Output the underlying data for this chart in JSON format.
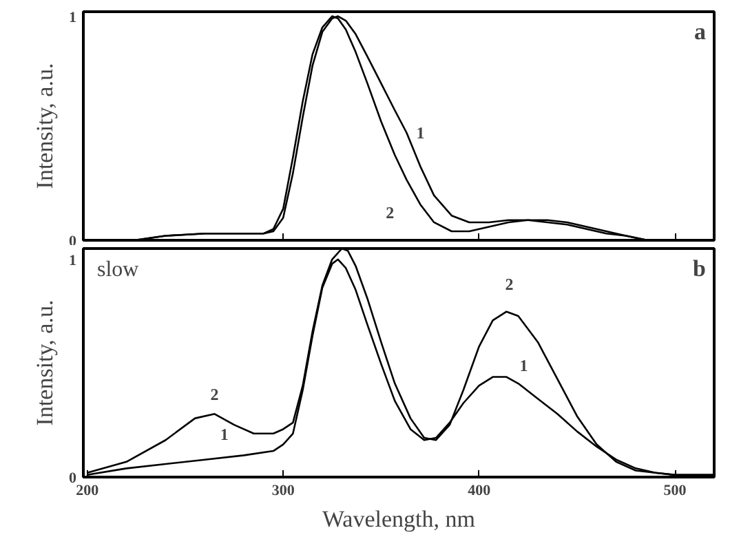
{
  "chart_data": [
    {
      "type": "line",
      "title": "a",
      "ylabel": "Intensity, a.u.",
      "xlim": [
        198,
        520
      ],
      "xticks": [
        {
          "value": 300,
          "label": null
        },
        {
          "value": 400,
          "label": null
        },
        {
          "value": 500,
          "label": null
        }
      ],
      "ylim": [
        0,
        1.02
      ],
      "yticks": [
        0,
        1
      ],
      "tick_labels": "y",
      "grid": false,
      "series": [
        {
          "color": "#000000",
          "x": [
            224,
            240,
            260,
            280,
            290,
            295,
            300,
            305,
            310,
            315,
            320,
            325,
            328,
            332,
            337,
            343,
            350,
            357,
            363,
            370,
            377,
            386,
            395,
            405,
            415,
            425,
            435,
            445,
            455,
            465,
            475,
            486
          ],
          "values": [
            0,
            0.02,
            0.03,
            0.03,
            0.03,
            0.04,
            0.1,
            0.3,
            0.55,
            0.78,
            0.93,
            0.99,
            1,
            0.98,
            0.92,
            0.82,
            0.7,
            0.58,
            0.48,
            0.33,
            0.2,
            0.11,
            0.08,
            0.08,
            0.09,
            0.09,
            0.08,
            0.07,
            0.05,
            0.03,
            0.02,
            0
          ]
        },
        {
          "color": "#000000",
          "x": [
            224,
            240,
            260,
            280,
            290,
            295,
            300,
            305,
            310,
            315,
            320,
            325,
            328,
            332,
            337,
            343,
            350,
            357,
            363,
            370,
            377,
            386,
            395,
            405,
            415,
            425,
            435,
            445,
            455,
            465,
            475,
            486
          ],
          "values": [
            0,
            0.02,
            0.03,
            0.03,
            0.03,
            0.05,
            0.14,
            0.37,
            0.62,
            0.83,
            0.95,
            1,
            0.99,
            0.94,
            0.84,
            0.7,
            0.53,
            0.38,
            0.27,
            0.16,
            0.08,
            0.04,
            0.04,
            0.06,
            0.08,
            0.09,
            0.09,
            0.08,
            0.06,
            0.04,
            0.02,
            0
          ]
        }
      ],
      "annotations": [
        {
          "text": "1",
          "x": 363,
          "y": 0.48
        },
        {
          "text": "2",
          "x": 370,
          "y": 0.16
        }
      ]
    },
    {
      "type": "line",
      "title": "b",
      "xlabel": "Wavelength, nm",
      "ylabel": "Intensity, a.u.",
      "xlim": [
        198,
        520
      ],
      "xticks": [
        200,
        300,
        400,
        500
      ],
      "ylim": [
        0,
        1.05
      ],
      "yticks": [
        0,
        1
      ],
      "grid": false,
      "series": [
        {
          "color": "#000000",
          "x": [
            200,
            220,
            240,
            260,
            280,
            295,
            300,
            305,
            310,
            315,
            320,
            325,
            328,
            332,
            337,
            343,
            350,
            357,
            365,
            372,
            378,
            385,
            392,
            400,
            407,
            414,
            420,
            430,
            440,
            450,
            460,
            470,
            480,
            490,
            500,
            520
          ],
          "values": [
            0.01,
            0.04,
            0.06,
            0.08,
            0.1,
            0.12,
            0.15,
            0.2,
            0.4,
            0.65,
            0.87,
            0.98,
            1,
            0.96,
            0.86,
            0.7,
            0.52,
            0.35,
            0.22,
            0.17,
            0.18,
            0.25,
            0.34,
            0.42,
            0.46,
            0.46,
            0.43,
            0.36,
            0.29,
            0.21,
            0.14,
            0.08,
            0.04,
            0.02,
            0.01,
            0.01
          ]
        },
        {
          "color": "#000000",
          "x": [
            200,
            220,
            240,
            255,
            265,
            275,
            285,
            295,
            300,
            305,
            310,
            315,
            320,
            325,
            330,
            333,
            337,
            343,
            350,
            357,
            365,
            372,
            378,
            385,
            392,
            400,
            407,
            414,
            420,
            430,
            440,
            450,
            460,
            470,
            480,
            490,
            500,
            520
          ],
          "values": [
            0.02,
            0.07,
            0.17,
            0.27,
            0.29,
            0.24,
            0.2,
            0.2,
            0.22,
            0.25,
            0.42,
            0.67,
            0.88,
            1,
            1.05,
            1.04,
            0.97,
            0.82,
            0.62,
            0.43,
            0.27,
            0.18,
            0.17,
            0.24,
            0.4,
            0.6,
            0.72,
            0.76,
            0.74,
            0.62,
            0.45,
            0.28,
            0.15,
            0.07,
            0.03,
            0.02,
            0.01,
            0.01
          ]
        }
      ],
      "annotations": [
        "slow",
        {
          "text": "1",
          "x": 270,
          "y": 0.09
        },
        {
          "text": "1",
          "x": 420,
          "y": 0.43
        },
        {
          "text": "2",
          "x": 265,
          "y": 0.29
        },
        {
          "text": "2",
          "x": 414,
          "y": 0.76
        }
      ]
    }
  ]
}
